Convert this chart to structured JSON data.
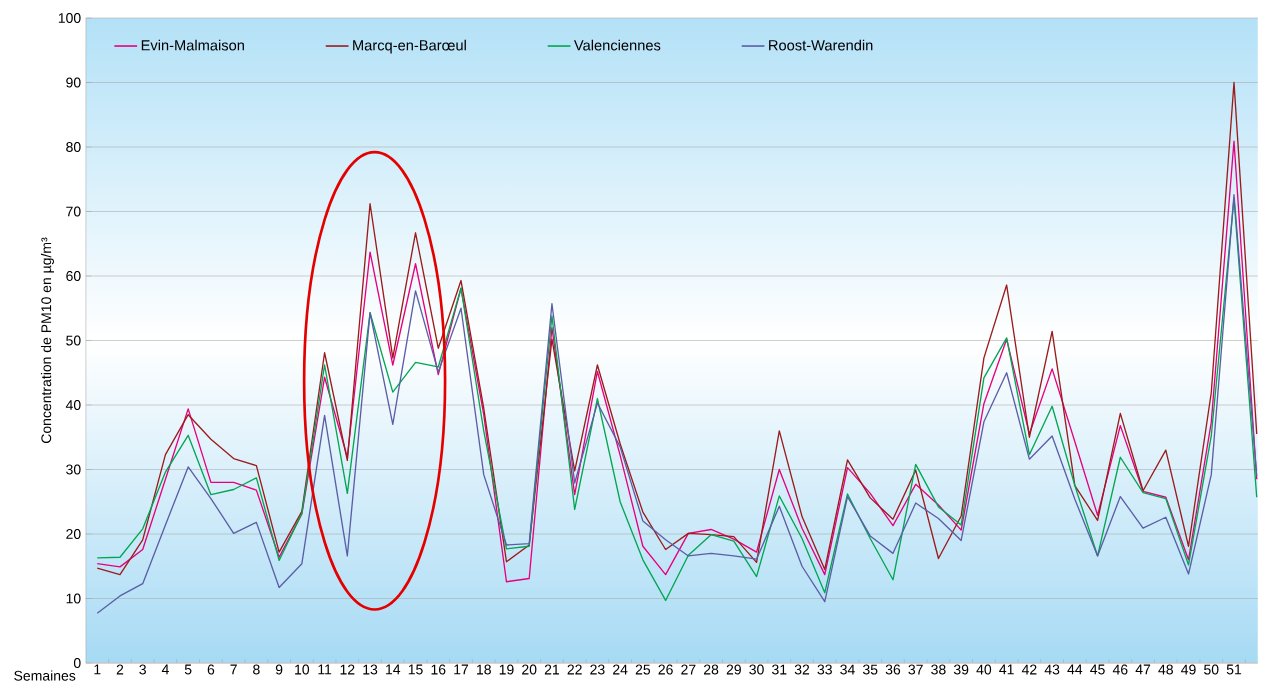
{
  "chart_data": {
    "type": "line",
    "xlabel": "Semaines",
    "ylabel": "Concentration de PM10 en  µg/m³",
    "categories": [
      "1",
      "2",
      "3",
      "4",
      "5",
      "6",
      "7",
      "8",
      "9",
      "10",
      "11",
      "12",
      "13",
      "14",
      "15",
      "16",
      "17",
      "18",
      "19",
      "20",
      "21",
      "22",
      "23",
      "24",
      "25",
      "26",
      "27",
      "28",
      "29",
      "30",
      "31",
      "32",
      "33",
      "34",
      "35",
      "36",
      "37",
      "38",
      "39",
      "40",
      "41",
      "42",
      "43",
      "44",
      "45",
      "46",
      "47",
      "48",
      "49",
      "50",
      "51",
      null
    ],
    "ylim": [
      0,
      100
    ],
    "yticks": [
      0,
      10,
      20,
      30,
      40,
      50,
      60,
      70,
      80,
      90,
      100
    ],
    "grid": "y",
    "legend": "top left",
    "marker": "none",
    "line_style": "solid",
    "series": [
      {
        "name": "Evin-Malmaison",
        "color": "#e6007e",
        "values": [
          15.4,
          14.9,
          17.6,
          28.5,
          39.4,
          28.0,
          28.0,
          26.8,
          16.4,
          23.1,
          44.3,
          31.9,
          63.7,
          46.2,
          61.9,
          44.7,
          58.1,
          38.5,
          12.6,
          13.1,
          52.0,
          26.1,
          45.2,
          32.2,
          18.1,
          13.7,
          20.1,
          20.7,
          19.2,
          17.2,
          30.0,
          20.9,
          13.7,
          30.3,
          26.3,
          21.3,
          27.7,
          24.5,
          20.6,
          40.2,
          50.2,
          35.5,
          45.6,
          34.3,
          22.9,
          36.8,
          26.6,
          25.7,
          16.0,
          37.3,
          80.9,
          28.5
        ]
      },
      {
        "name": "Marcq-en-Barœul",
        "color": "#9b1b1b",
        "values": [
          14.7,
          13.7,
          19.1,
          32.3,
          38.5,
          34.7,
          31.7,
          30.6,
          17.2,
          23.5,
          48.1,
          31.4,
          71.2,
          47.3,
          66.7,
          48.8,
          59.3,
          39.5,
          15.7,
          18.3,
          50.2,
          29.8,
          46.2,
          34.0,
          23.4,
          17.6,
          20.1,
          19.9,
          19.6,
          15.6,
          36.0,
          22.7,
          14.5,
          31.5,
          25.6,
          22.3,
          29.9,
          16.2,
          22.8,
          47.3,
          58.6,
          35.0,
          51.4,
          27.5,
          22.1,
          38.7,
          26.7,
          33.0,
          18.1,
          41.9,
          90.0,
          35.5
        ]
      },
      {
        "name": "Valenciennes",
        "color": "#00a651",
        "values": [
          16.3,
          16.4,
          20.8,
          29.6,
          35.3,
          26.1,
          26.9,
          28.7,
          15.9,
          23.2,
          46.2,
          26.3,
          54.3,
          42.0,
          46.6,
          45.9,
          58.1,
          36.0,
          17.7,
          18.1,
          53.8,
          23.8,
          41.0,
          25.0,
          16.0,
          9.7,
          16.7,
          19.9,
          18.9,
          13.4,
          25.9,
          19.3,
          10.9,
          26.2,
          19.3,
          12.9,
          30.8,
          24.2,
          21.4,
          44.2,
          50.4,
          32.3,
          39.8,
          27.5,
          16.6,
          31.9,
          26.4,
          25.5,
          15.2,
          35.2,
          72.0,
          25.7
        ]
      },
      {
        "name": "Roost-Warendin",
        "color": "#5b5ea6",
        "values": [
          7.7,
          10.4,
          12.3,
          21.4,
          30.4,
          25.5,
          20.1,
          21.8,
          11.7,
          15.4,
          38.4,
          16.6,
          54.3,
          37.0,
          57.7,
          45.1,
          55.0,
          29.2,
          18.3,
          18.5,
          55.7,
          27.9,
          40.3,
          33.5,
          22.0,
          19.1,
          16.6,
          17.0,
          16.6,
          16.1,
          24.3,
          15.0,
          9.5,
          25.8,
          19.7,
          17.0,
          24.8,
          22.4,
          19.0,
          37.4,
          45.0,
          31.6,
          35.2,
          25.4,
          16.6,
          25.8,
          20.9,
          22.6,
          13.8,
          29.2,
          72.6,
          29.0
        ]
      }
    ]
  }
}
